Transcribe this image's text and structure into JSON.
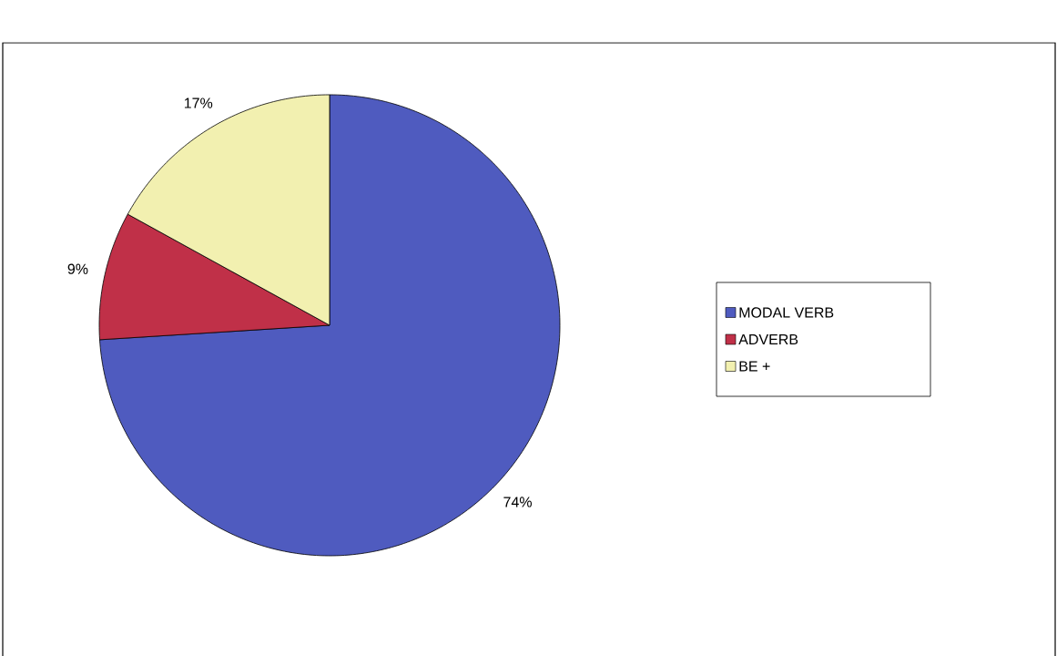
{
  "chart_data": {
    "type": "pie",
    "categories": [
      "MODAL VERB",
      "ADVERB",
      "BE +"
    ],
    "values": [
      74,
      9,
      17
    ],
    "value_labels": [
      "74%",
      "9%",
      "17%"
    ],
    "colors": [
      "#4f5bbf",
      "#c03048",
      "#f2f0b0"
    ],
    "legend": "right"
  }
}
